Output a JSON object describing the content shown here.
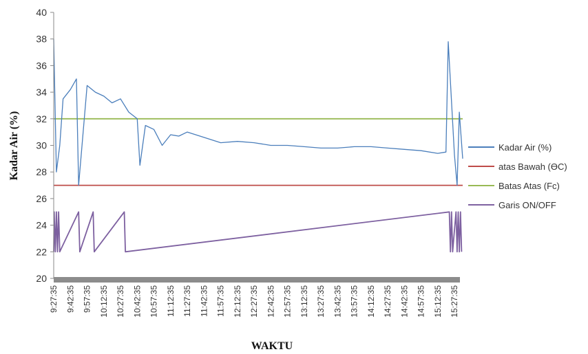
{
  "chart_data": {
    "type": "line",
    "title": "",
    "xlabel": "WAKTU",
    "ylabel": "Kadar Air (%)",
    "ylim": [
      20,
      40
    ],
    "yticks": [
      20,
      22,
      24,
      26,
      28,
      30,
      32,
      34,
      36,
      38,
      40
    ],
    "x_tick_labels": [
      "9:27:35",
      "9:42:35",
      "9:57:35",
      "10:12:35",
      "10:27:35",
      "10:42:35",
      "10:57:35",
      "11:12:35",
      "11:27:35",
      "11:42:35",
      "11:57:35",
      "12:12:35",
      "12:27:35",
      "12:42:35",
      "12:57:35",
      "13:12:35",
      "13:27:35",
      "13:42:35",
      "13:57:35",
      "14:12:35",
      "14:27:35",
      "14:42:35",
      "14:57:35",
      "15:12:35",
      "15:27:35"
    ],
    "grid": false,
    "legend_position": "right",
    "series": [
      {
        "name": "Kadar Air (%)",
        "color": "#4a7ebb",
        "x": [
          "9:27:35",
          "9:30:00",
          "9:33:00",
          "9:36:00",
          "9:42:35",
          "9:48:00",
          "9:50:00",
          "9:57:35",
          "10:05:00",
          "10:12:35",
          "10:20:00",
          "10:27:35",
          "10:35:00",
          "10:42:35",
          "10:45:00",
          "10:50:00",
          "10:57:35",
          "11:05:00",
          "11:12:35",
          "11:20:00",
          "11:27:35",
          "11:42:35",
          "11:57:35",
          "12:12:35",
          "12:27:35",
          "12:42:35",
          "12:57:35",
          "13:12:35",
          "13:27:35",
          "13:42:35",
          "13:57:35",
          "14:12:35",
          "14:27:35",
          "14:42:35",
          "14:57:35",
          "15:12:35",
          "15:20:00",
          "15:22:00",
          "15:27:35",
          "15:30:00",
          "15:32:00",
          "15:35:00"
        ],
        "values": [
          38.0,
          28.0,
          30.0,
          33.5,
          34.2,
          35.0,
          27.0,
          34.5,
          34.0,
          33.7,
          33.2,
          33.5,
          32.5,
          32.0,
          28.5,
          31.5,
          31.2,
          30.0,
          30.8,
          30.7,
          31.0,
          30.6,
          30.2,
          30.3,
          30.2,
          30.0,
          30.0,
          29.9,
          29.8,
          29.8,
          29.9,
          29.9,
          29.8,
          29.7,
          29.6,
          29.4,
          29.5,
          37.8,
          29.3,
          27.0,
          32.5,
          29.0
        ]
      },
      {
        "name": "atas Bawah (ϴC)",
        "color": "#be4b48",
        "x": [
          "9:27:35",
          "15:35:00"
        ],
        "values": [
          27,
          27
        ]
      },
      {
        "name": "Batas Atas (Fc)",
        "color": "#98b954",
        "x": [
          "9:27:35",
          "15:35:00"
        ],
        "values": [
          32,
          32
        ]
      },
      {
        "name": "Garis ON/OFF",
        "color": "#7d60a0",
        "x": [
          "9:27:35",
          "9:28:00",
          "9:29:00",
          "9:30:00",
          "9:31:00",
          "9:32:00",
          "9:33:00",
          "9:50:00",
          "9:51:00",
          "10:03:00",
          "10:04:00",
          "10:31:00",
          "10:32:00",
          "15:23:00",
          "15:24:00",
          "15:25:00",
          "15:26:00",
          "15:29:00",
          "15:30:00",
          "15:31:00",
          "15:32:00",
          "15:33:00",
          "15:34:00"
        ],
        "values": [
          22,
          25,
          22,
          25,
          22,
          25,
          22,
          25,
          22,
          25,
          22,
          25,
          22,
          25,
          22,
          25,
          22,
          25,
          22,
          25,
          22,
          25,
          22
        ]
      }
    ]
  }
}
